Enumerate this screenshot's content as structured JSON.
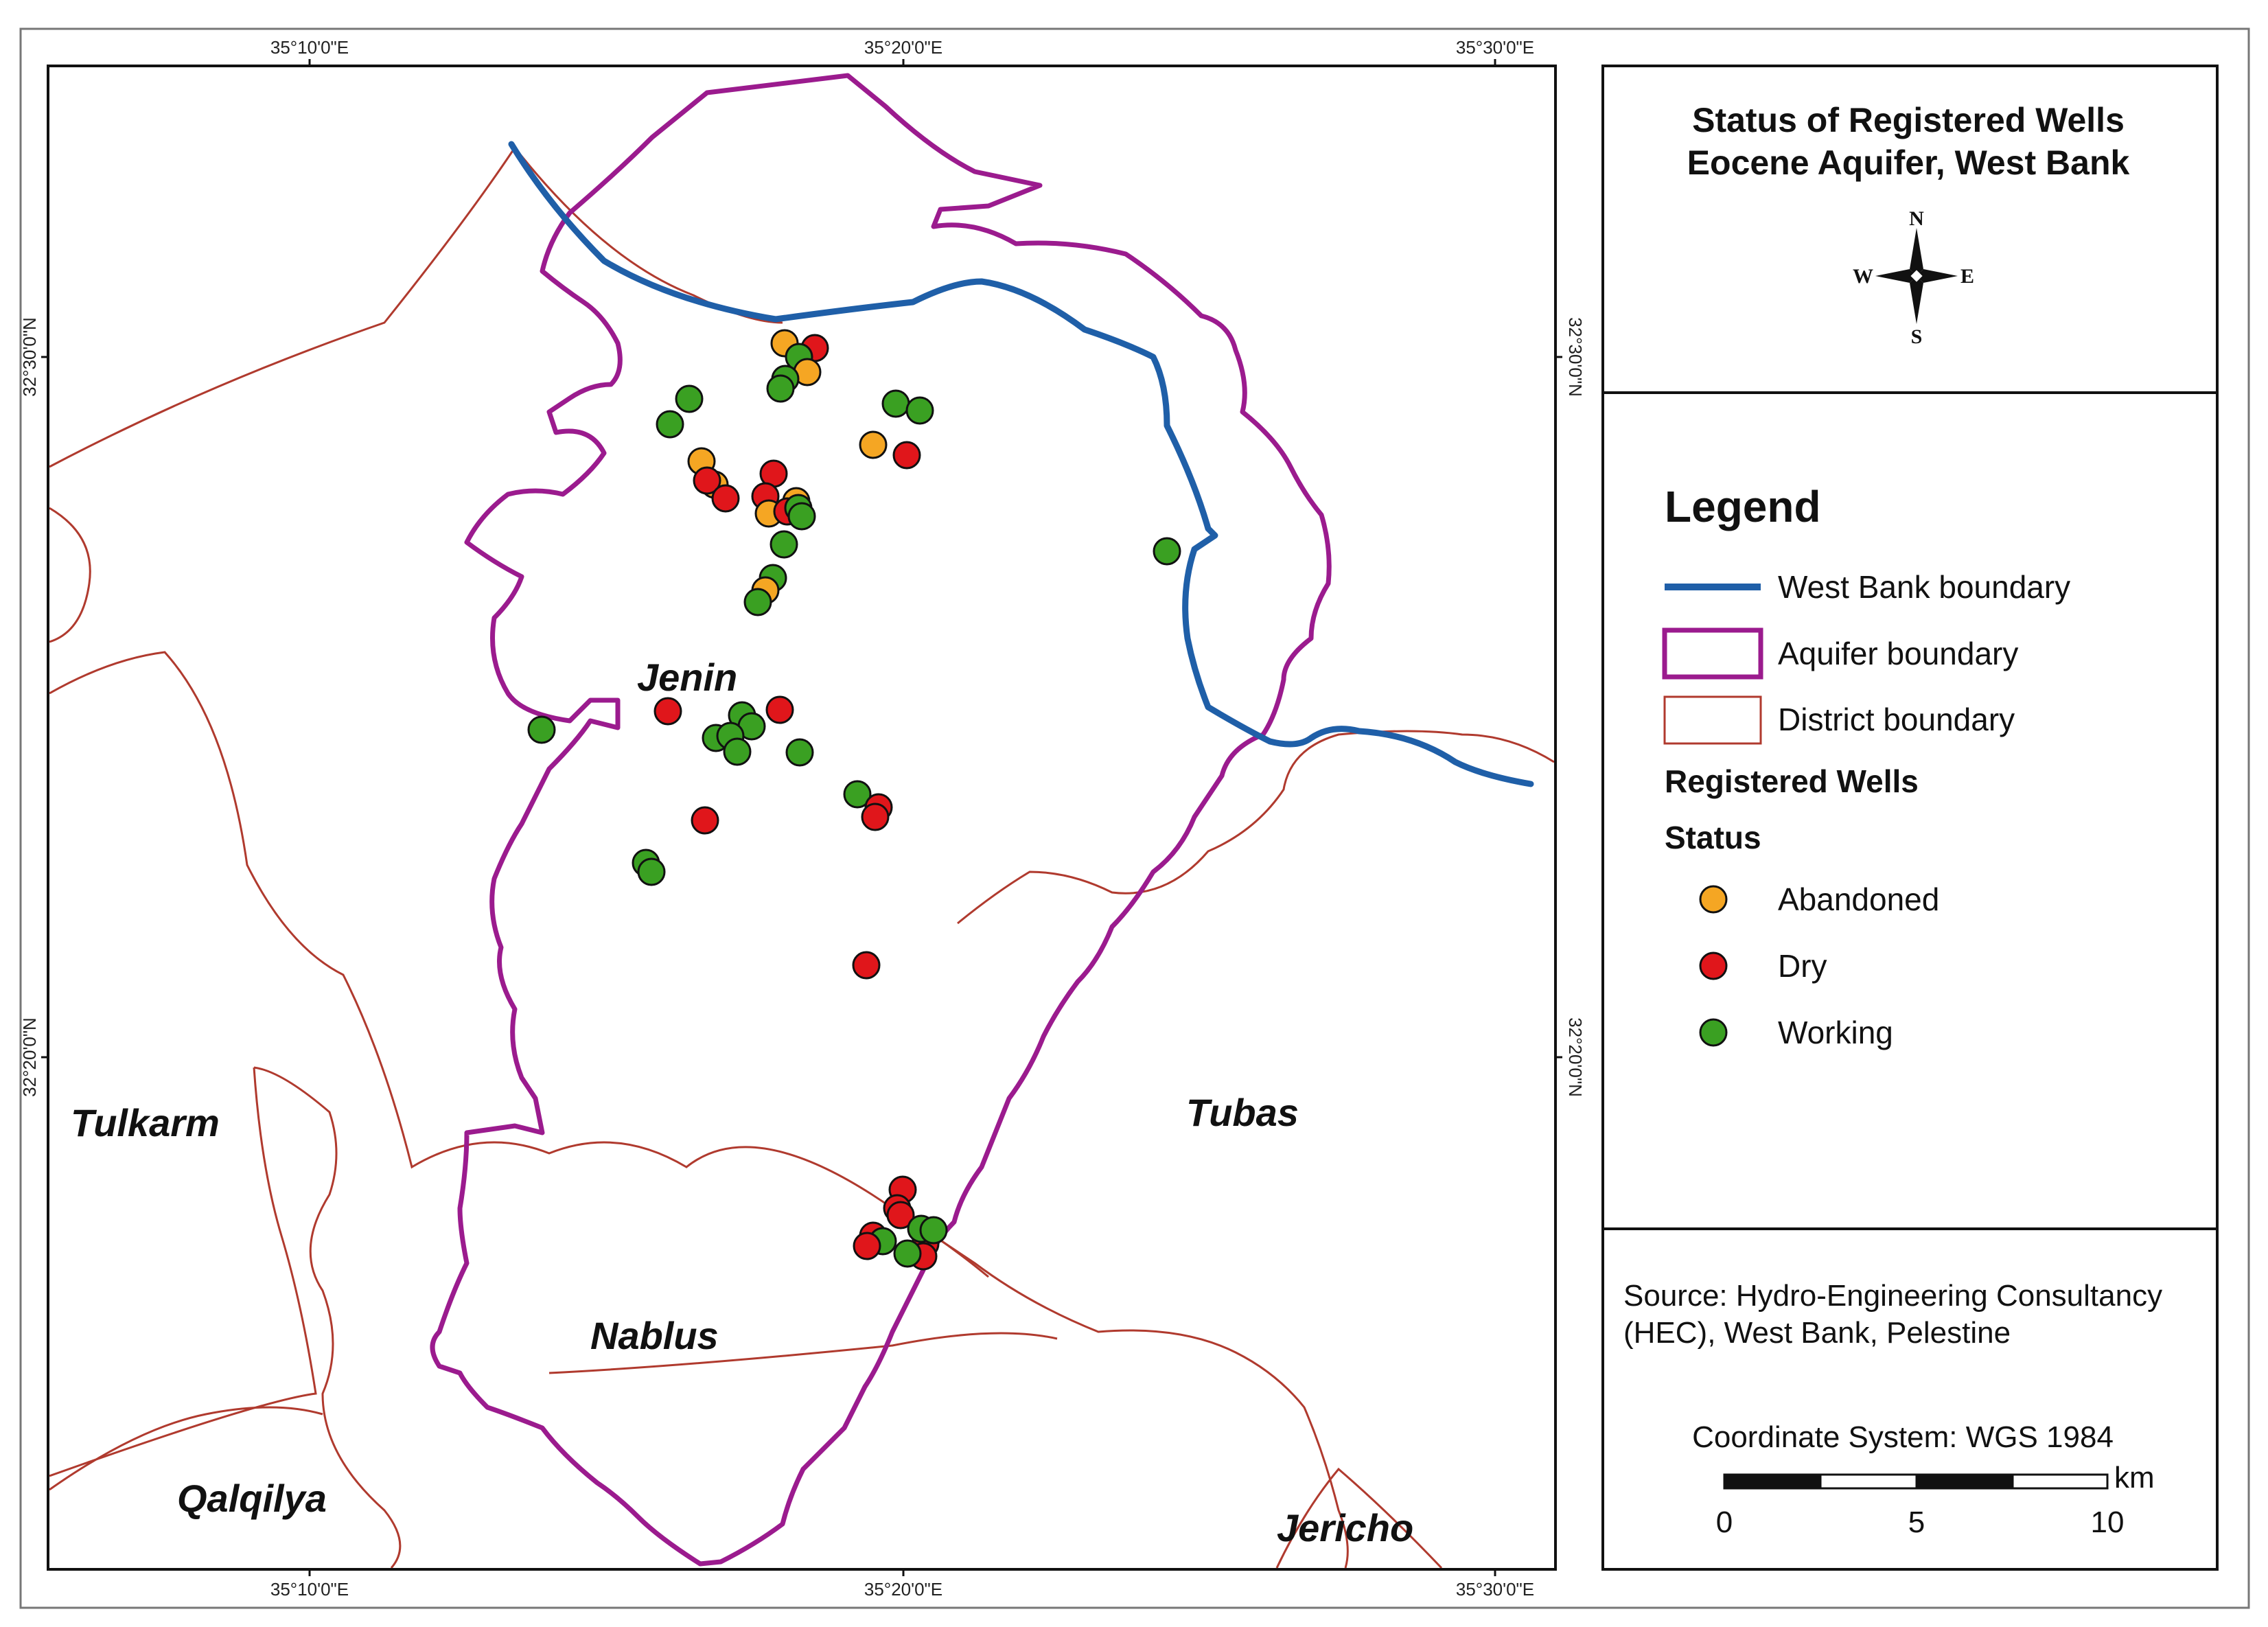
{
  "title": {
    "line1": "Status of Registered Wells",
    "line2": "Eocene Aquifer, West Bank"
  },
  "compass": {
    "n": "N",
    "s": "S",
    "e": "E",
    "w": "W",
    "icon": "north-arrow-icon"
  },
  "graticule": {
    "top": [
      "35°10'0\"E",
      "35°20'0\"E",
      "35°30'0\"E"
    ],
    "bottom": [
      "35°10'0\"E",
      "35°20'0\"E",
      "35°30'0\"E"
    ],
    "left": [
      "32°30'0\"N",
      "32°20'0\"N"
    ],
    "right": [
      "32°30'0\"N",
      "32°20'0\"N"
    ]
  },
  "districts": {
    "jenin": "Jenin",
    "tulkarm": "Tulkarm",
    "tubas": "Tubas",
    "nablus": "Nablus",
    "qalqilya": "Qalqilya",
    "jericho": "Jericho"
  },
  "legend": {
    "heading": "Legend",
    "west_bank_boundary": "West Bank boundary",
    "aquifer_boundary": "Aquifer boundary",
    "district_boundary": "District boundary",
    "registered_wells": "Registered Wells",
    "status": "Status",
    "abandoned": "Abandoned",
    "dry": "Dry",
    "working": "Working"
  },
  "colors": {
    "west_bank_boundary": "#1f5fa8",
    "aquifer_boundary": "#9b1b8e",
    "district_boundary": "#b03a2e",
    "abandoned": "#f5a623",
    "dry": "#e0161b",
    "working": "#3aa022"
  },
  "source": {
    "line1": "Source: Hydro-Engineering Consultancy",
    "line2": "(HEC), West Bank, Pelestine"
  },
  "coordinate_system": "Coordinate System: WGS 1984",
  "scale_bar": {
    "unit": "km",
    "ticks": [
      "0",
      "5",
      "10"
    ]
  }
}
